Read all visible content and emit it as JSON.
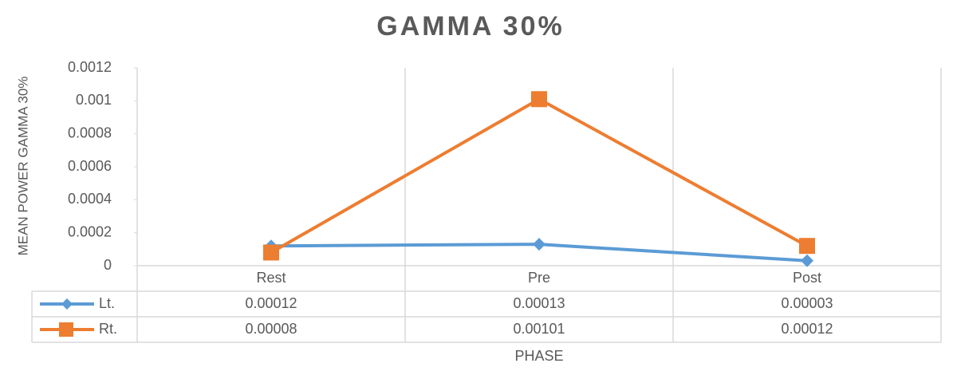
{
  "chart_data": {
    "type": "line",
    "title": "GAMMA 30%",
    "y_label": "MEAN POWER GAMMA 30%",
    "x_label": "PHASE",
    "categories": [
      "Rest",
      "Pre",
      "Post"
    ],
    "series": [
      {
        "name": "Lt.",
        "color": "#5b9bd5",
        "marker": "diamond",
        "values": [
          0.00012,
          0.00013,
          3e-05
        ]
      },
      {
        "name": "Rt.",
        "color": "#ed7d31",
        "marker": "square",
        "values": [
          8e-05,
          0.00101,
          0.00012
        ]
      }
    ],
    "ylim": [
      0,
      0.0012
    ],
    "yticks": [
      0,
      0.0002,
      0.0004,
      0.0006,
      0.0008,
      0.001,
      0.0012
    ],
    "grid": true,
    "data_table": true
  }
}
